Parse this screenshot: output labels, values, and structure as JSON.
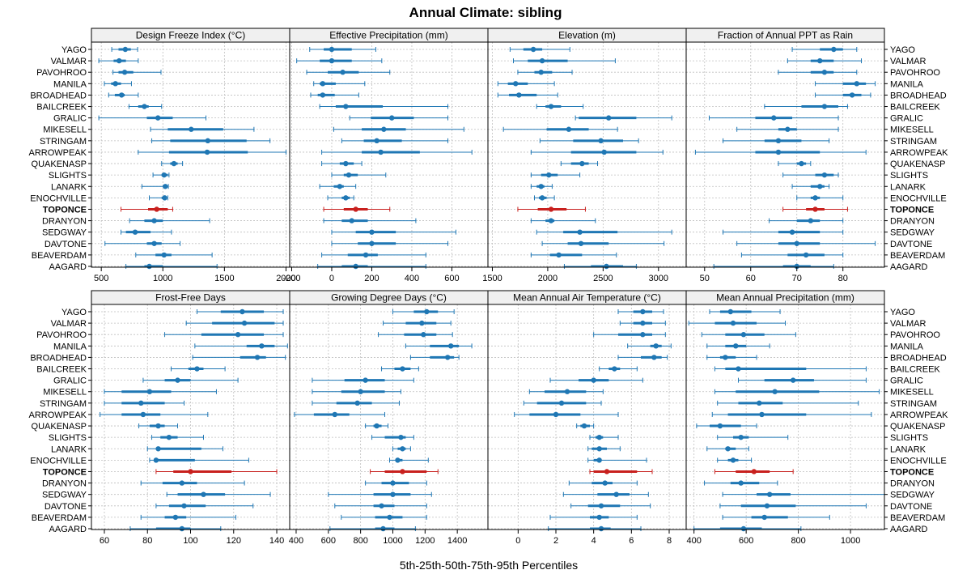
{
  "title": "Annual Climate: sibling",
  "xlabel": "5th-25th-50th-75th-95th Percentiles",
  "highlight": "TOPONCE",
  "colors": {
    "normal": "#1f77b4",
    "highlight": "#c8201e",
    "strip": "#f0f0f0",
    "grid": "#bfbfbf"
  },
  "sites": [
    "YAGO",
    "VALMAR",
    "PAVOHROO",
    "MANILA",
    "BROADHEAD",
    "BAILCREEK",
    "GRALIC",
    "MIKESELL",
    "STRINGAM",
    "ARROWPEAK",
    "QUAKENASP",
    "SLIGHTS",
    "LANARK",
    "ENOCHVILLE",
    "TOPONCE",
    "DRANYON",
    "SEDGWAY",
    "DAVTONE",
    "BEAVERDAM",
    "AAGARD"
  ],
  "chart_data": [
    {
      "type": "dotplot",
      "title": "Design Freeze Index (°C)",
      "xlim": [
        420,
        2030
      ],
      "ticks": [
        500,
        1000,
        1500,
        2000
      ],
      "stats": [
        [
          585,
          640,
          695,
          740,
          795
        ],
        [
          480,
          600,
          645,
          700,
          800
        ],
        [
          595,
          640,
          690,
          760,
          985
        ],
        [
          525,
          580,
          615,
          660,
          745
        ],
        [
          560,
          610,
          665,
          690,
          800
        ],
        [
          725,
          800,
          850,
          885,
          990
        ],
        [
          480,
          870,
          960,
          1080,
          1350
        ],
        [
          900,
          1040,
          1230,
          1490,
          1740
        ],
        [
          910,
          1060,
          1365,
          1680,
          1870
        ],
        [
          800,
          1050,
          1360,
          1690,
          2000
        ],
        [
          990,
          1060,
          1090,
          1120,
          1160
        ],
        [
          920,
          990,
          1010,
          1040,
          1050
        ],
        [
          830,
          1000,
          1020,
          1040,
          1045
        ],
        [
          890,
          990,
          1015,
          1030,
          1040
        ],
        [
          660,
          880,
          950,
          1040,
          1080
        ],
        [
          730,
          850,
          930,
          1000,
          1380
        ],
        [
          660,
          700,
          775,
          900,
          1070
        ],
        [
          530,
          870,
          930,
          990,
          1140
        ],
        [
          780,
          940,
          1010,
          1070,
          1400
        ],
        [
          700,
          850,
          890,
          1000,
          1440
        ]
      ]
    },
    {
      "type": "dotplot",
      "title": "Effective Precipitation (mm)",
      "xlim": [
        -210,
        780
      ],
      "ticks": [
        -200,
        0,
        200,
        400,
        600
      ],
      "stats": [
        [
          -110,
          -40,
          0,
          100,
          220
        ],
        [
          -175,
          -60,
          0,
          100,
          250
        ],
        [
          -125,
          -20,
          55,
          135,
          290
        ],
        [
          -90,
          -60,
          -45,
          20,
          165
        ],
        [
          -105,
          -70,
          -45,
          15,
          135
        ],
        [
          -60,
          20,
          70,
          255,
          580
        ],
        [
          90,
          195,
          300,
          410,
          580
        ],
        [
          10,
          150,
          260,
          370,
          660
        ],
        [
          50,
          160,
          225,
          350,
          580
        ],
        [
          -50,
          150,
          245,
          440,
          700
        ],
        [
          -50,
          40,
          70,
          110,
          150
        ],
        [
          0,
          60,
          85,
          130,
          270
        ],
        [
          -60,
          10,
          40,
          60,
          120
        ],
        [
          -20,
          50,
          70,
          90,
          110
        ],
        [
          -40,
          60,
          120,
          180,
          290
        ],
        [
          -40,
          50,
          100,
          180,
          420
        ],
        [
          0,
          120,
          200,
          320,
          620
        ],
        [
          0,
          130,
          200,
          320,
          580
        ],
        [
          -50,
          80,
          170,
          230,
          470
        ],
        [
          -70,
          50,
          120,
          180,
          470
        ]
      ]
    },
    {
      "type": "dotplot",
      "title": "Elevation (m)",
      "xlim": [
        1460,
        3250
      ],
      "ticks": [
        1500,
        2000,
        2500,
        3000
      ],
      "stats": [
        [
          1660,
          1780,
          1870,
          1950,
          2200
        ],
        [
          1690,
          1820,
          1950,
          2180,
          2610
        ],
        [
          1730,
          1880,
          1940,
          2040,
          2220
        ],
        [
          1550,
          1640,
          1710,
          1820,
          2060
        ],
        [
          1550,
          1650,
          1740,
          1900,
          2090
        ],
        [
          1900,
          1980,
          2030,
          2120,
          2320
        ],
        [
          2250,
          2280,
          2550,
          2800,
          3120
        ],
        [
          1600,
          1990,
          2190,
          2370,
          2630
        ],
        [
          1930,
          2230,
          2480,
          2680,
          2820
        ],
        [
          1850,
          2210,
          2510,
          2800,
          3040
        ],
        [
          2120,
          2210,
          2310,
          2370,
          2450
        ],
        [
          1850,
          1940,
          2010,
          2090,
          2290
        ],
        [
          1850,
          1900,
          1940,
          1970,
          2040
        ],
        [
          1880,
          1920,
          1950,
          1990,
          2060
        ],
        [
          1730,
          1910,
          2030,
          2170,
          2340
        ],
        [
          1850,
          1980,
          2030,
          2060,
          2430
        ],
        [
          1900,
          2140,
          2290,
          2630,
          3120
        ],
        [
          1950,
          2180,
          2300,
          2550,
          3050
        ],
        [
          1850,
          2020,
          2100,
          2310,
          2620
        ],
        [
          2150,
          2390,
          2530,
          2680,
          2800
        ]
      ]
    },
    {
      "type": "dotplot",
      "title": "Fraction of Annual PPT as Rain",
      "xlim": [
        46,
        89
      ],
      "ticks": [
        50,
        60,
        70,
        80
      ],
      "stats": [
        [
          69,
          75,
          78,
          80,
          83
        ],
        [
          68,
          73,
          75,
          78,
          84
        ],
        [
          66,
          73,
          76,
          78,
          83
        ],
        [
          74,
          80,
          83,
          85,
          87
        ],
        [
          74,
          80,
          82,
          84,
          86
        ],
        [
          63,
          71,
          76,
          79,
          81
        ],
        [
          51,
          61,
          65,
          69,
          79
        ],
        [
          57,
          66,
          68,
          70,
          79
        ],
        [
          54,
          63,
          66,
          71,
          77
        ],
        [
          48,
          61,
          66,
          75,
          85
        ],
        [
          66,
          70,
          71,
          72,
          73
        ],
        [
          67,
          74,
          76,
          78,
          79
        ],
        [
          69,
          73,
          75,
          76,
          77
        ],
        [
          70,
          73,
          74,
          75,
          80
        ],
        [
          67,
          72,
          74,
          76,
          81
        ],
        [
          64,
          70,
          73,
          75,
          80
        ],
        [
          54,
          66,
          69,
          75,
          80
        ],
        [
          57,
          66,
          70,
          75,
          87
        ],
        [
          58,
          68,
          72,
          76,
          80
        ],
        [
          52,
          67,
          70,
          73,
          78
        ]
      ]
    },
    {
      "type": "dotplot",
      "title": "Frost-Free Days",
      "xlim": [
        54,
        146
      ],
      "ticks": [
        60,
        80,
        100,
        120,
        140
      ],
      "stats": [
        [
          103,
          114,
          124,
          134,
          143
        ],
        [
          98,
          110,
          125,
          139,
          143
        ],
        [
          88,
          105,
          122,
          134,
          143
        ],
        [
          102,
          126,
          133,
          139,
          145
        ],
        [
          101,
          123,
          131,
          135,
          144
        ],
        [
          91,
          99,
          103,
          106,
          116
        ],
        [
          78,
          88,
          94,
          100,
          122
        ],
        [
          60,
          68,
          81,
          91,
          112
        ],
        [
          60,
          68,
          77,
          88,
          97
        ],
        [
          58,
          68,
          78,
          86,
          108
        ],
        [
          76,
          81,
          85,
          88,
          94
        ],
        [
          82,
          86,
          90,
          94,
          106
        ],
        [
          80,
          84,
          85,
          105,
          115
        ],
        [
          81,
          83,
          84,
          102,
          127
        ],
        [
          84,
          92,
          100,
          119,
          140
        ],
        [
          77,
          87,
          96,
          103,
          125
        ],
        [
          89,
          94,
          106,
          116,
          137
        ],
        [
          84,
          90,
          97,
          107,
          129
        ],
        [
          77,
          88,
          93,
          98,
          121
        ],
        [
          72,
          84,
          96,
          100,
          114
        ]
      ]
    },
    {
      "type": "dotplot",
      "title": "Growing Degree Days (°C)",
      "xlim": [
        360,
        1590
      ],
      "ticks": [
        400,
        600,
        800,
        1000,
        1200,
        1400
      ],
      "stats": [
        [
          1000,
          1130,
          1210,
          1280,
          1380
        ],
        [
          940,
          1080,
          1180,
          1270,
          1360
        ],
        [
          910,
          1070,
          1190,
          1270,
          1370
        ],
        [
          1080,
          1230,
          1360,
          1410,
          1490
        ],
        [
          1110,
          1230,
          1340,
          1380,
          1410
        ],
        [
          930,
          1010,
          1060,
          1110,
          1160
        ],
        [
          500,
          700,
          830,
          950,
          1130
        ],
        [
          500,
          680,
          800,
          950,
          1050
        ],
        [
          500,
          650,
          780,
          870,
          1040
        ],
        [
          390,
          510,
          640,
          730,
          950
        ],
        [
          830,
          880,
          900,
          930,
          970
        ],
        [
          870,
          950,
          1050,
          1080,
          1130
        ],
        [
          1000,
          1030,
          1060,
          1080,
          1110
        ],
        [
          980,
          1020,
          1030,
          1060,
          1220
        ],
        [
          860,
          950,
          1060,
          1210,
          1280
        ],
        [
          830,
          930,
          1000,
          1100,
          1210
        ],
        [
          600,
          880,
          1000,
          1110,
          1240
        ],
        [
          640,
          880,
          930,
          1010,
          1210
        ],
        [
          680,
          890,
          980,
          1060,
          1210
        ],
        [
          610,
          890,
          940,
          1010,
          1140
        ]
      ]
    },
    {
      "type": "dotplot",
      "title": "Mean Annual Air Temperature (°C)",
      "xlim": [
        -1.6,
        8.9
      ],
      "ticks": [
        0,
        2,
        4,
        6,
        8
      ],
      "stats": [
        [
          5.3,
          6.1,
          6.6,
          7.1,
          7.7
        ],
        [
          5.4,
          6.1,
          6.6,
          7.1,
          7.8
        ],
        [
          4.0,
          5.3,
          6.6,
          7.1,
          7.8
        ],
        [
          5.8,
          7.0,
          7.3,
          7.6,
          8.1
        ],
        [
          5.3,
          6.5,
          7.2,
          7.6,
          7.9
        ],
        [
          4.3,
          4.8,
          5.1,
          5.4,
          6.3
        ],
        [
          1.7,
          3.2,
          4.0,
          4.8,
          6.6
        ],
        [
          0.6,
          1.4,
          2.6,
          3.6,
          4.5
        ],
        [
          0.3,
          1.0,
          2.3,
          3.6,
          4.4
        ],
        [
          -0.2,
          0.6,
          2.0,
          3.3,
          5.3
        ],
        [
          3.1,
          3.3,
          3.5,
          3.8,
          4.0
        ],
        [
          3.8,
          4.1,
          4.3,
          4.5,
          5.3
        ],
        [
          3.7,
          3.9,
          4.3,
          4.7,
          5.4
        ],
        [
          3.7,
          4.0,
          4.3,
          4.4,
          6.8
        ],
        [
          3.8,
          4.0,
          4.7,
          6.3,
          7.1
        ],
        [
          2.7,
          3.9,
          4.6,
          5.0,
          6.3
        ],
        [
          2.4,
          4.2,
          5.2,
          5.9,
          6.9
        ],
        [
          2.8,
          3.7,
          4.4,
          5.4,
          7.0
        ],
        [
          1.7,
          3.8,
          4.3,
          4.8,
          6.3
        ],
        [
          1.6,
          3.8,
          4.4,
          4.9,
          6.5
        ]
      ]
    },
    {
      "type": "dotplot",
      "title": "Mean Annual Precipitation (mm)",
      "xlim": [
        370,
        1130
      ],
      "ticks": [
        400,
        600,
        800,
        1000
      ],
      "stats": [
        [
          460,
          500,
          540,
          620,
          730
        ],
        [
          380,
          480,
          550,
          640,
          750
        ],
        [
          430,
          520,
          590,
          670,
          790
        ],
        [
          450,
          520,
          560,
          600,
          690
        ],
        [
          450,
          500,
          520,
          560,
          640
        ],
        [
          480,
          520,
          570,
          830,
          1060
        ],
        [
          570,
          670,
          780,
          860,
          1060
        ],
        [
          480,
          560,
          710,
          880,
          1110
        ],
        [
          490,
          570,
          650,
          740,
          1030
        ],
        [
          470,
          530,
          660,
          830,
          1080
        ],
        [
          410,
          460,
          500,
          580,
          640
        ],
        [
          490,
          550,
          580,
          610,
          760
        ],
        [
          450,
          520,
          530,
          560,
          610
        ],
        [
          490,
          530,
          550,
          570,
          620
        ],
        [
          480,
          560,
          630,
          690,
          780
        ],
        [
          440,
          540,
          580,
          650,
          720
        ],
        [
          510,
          640,
          690,
          770,
          1130
        ],
        [
          500,
          580,
          680,
          790,
          1060
        ],
        [
          510,
          620,
          670,
          760,
          920
        ],
        [
          400,
          500,
          590,
          660,
          810
        ]
      ]
    }
  ]
}
